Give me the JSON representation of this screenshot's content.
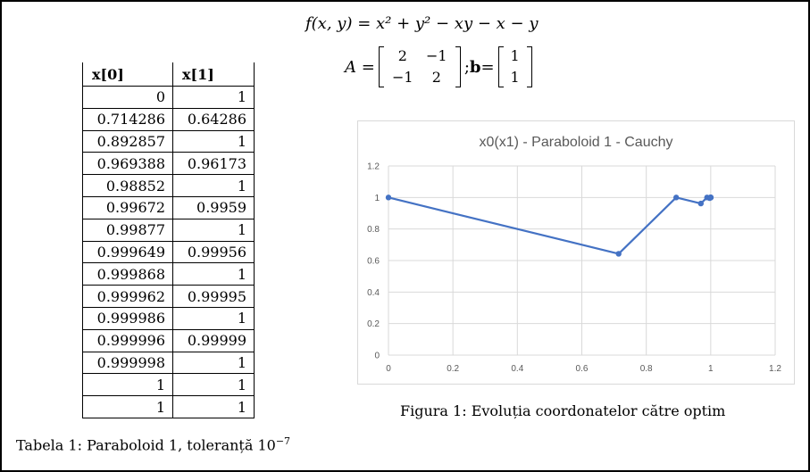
{
  "formula": {
    "lhs": "f(x, y) = ",
    "rhs": "x² + y² − xy − x − y",
    "a_label": "A = ",
    "separator": "; ",
    "b_label": "b",
    "equals": " = ",
    "matrix_a": [
      "2",
      "−1",
      "−1",
      "2"
    ],
    "vector_b": [
      "1",
      "1"
    ]
  },
  "table": {
    "headers": [
      "x[0]",
      "x[1]"
    ],
    "rows": [
      [
        "0",
        "1"
      ],
      [
        "0.714286",
        "0.64286"
      ],
      [
        "0.892857",
        "1"
      ],
      [
        "0.969388",
        "0.96173"
      ],
      [
        "0.98852",
        "1"
      ],
      [
        "0.99672",
        "0.9959"
      ],
      [
        "0.99877",
        "1"
      ],
      [
        "0.999649",
        "0.99956"
      ],
      [
        "0.999868",
        "1"
      ],
      [
        "0.999962",
        "0.99995"
      ],
      [
        "0.999986",
        "1"
      ],
      [
        "0.999996",
        "0.99999"
      ],
      [
        "0.999998",
        "1"
      ],
      [
        "1",
        "1"
      ],
      [
        "1",
        "1"
      ]
    ],
    "caption": "Tabela 1: Paraboloid 1, toleranță 10",
    "caption_exp": "−7"
  },
  "figure_caption": "Figura 1: Evoluția coordonatelor către optim",
  "chart_data": {
    "type": "line",
    "title": "x0(x1) - Paraboloid 1 - Cauchy",
    "xlabel": "",
    "ylabel": "",
    "xlim": [
      0,
      1.2
    ],
    "ylim": [
      0,
      1.2
    ],
    "xticks": [
      "0",
      "0.2",
      "0.4",
      "0.6",
      "0.8",
      "1",
      "1.2"
    ],
    "yticks": [
      "0",
      "0.2",
      "0.4",
      "0.6",
      "0.8",
      "1",
      "1.2"
    ],
    "grid": true,
    "color": "#4472C4",
    "series": [
      {
        "name": "x0(x1)",
        "x": [
          0,
          0.714286,
          0.892857,
          0.969388,
          0.98852,
          0.99672,
          0.99877,
          0.999649,
          0.999868,
          0.999962,
          0.999986,
          0.999996,
          0.999998,
          1,
          1
        ],
        "y": [
          1,
          0.64286,
          1,
          0.96173,
          1,
          0.9959,
          1,
          0.99956,
          1,
          0.99995,
          1,
          0.99999,
          1,
          1,
          1
        ]
      }
    ]
  }
}
